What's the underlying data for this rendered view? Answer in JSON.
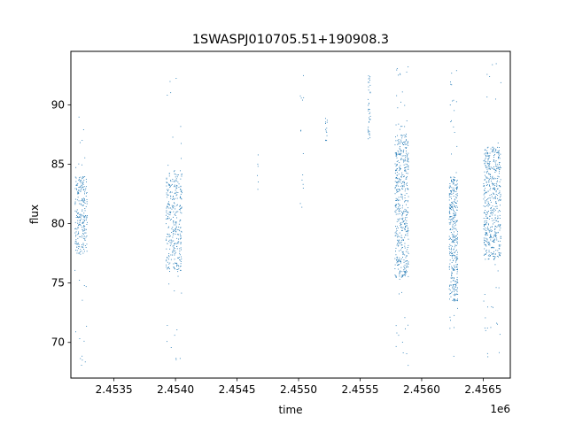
{
  "chart_data": {
    "type": "scatter",
    "title": "1SWASPJ010705.51+190908.3",
    "xlabel": "time",
    "ylabel": "flux",
    "x_offset_label": "1e6",
    "xlim": [
      2453150,
      2456720
    ],
    "ylim": [
      67,
      94.5
    ],
    "x_ticks": [
      2453500,
      2454000,
      2454500,
      2455000,
      2455500,
      2456000,
      2456500
    ],
    "x_tick_labels": [
      "2.4535",
      "2.4540",
      "2.4545",
      "2.4550",
      "2.4555",
      "2.4560",
      "2.4565"
    ],
    "y_ticks": [
      70,
      75,
      80,
      85,
      90
    ],
    "y_tick_labels": [
      "70",
      "75",
      "80",
      "85",
      "90"
    ],
    "grid": false,
    "marker_color": "#1f77b4",
    "series": [
      {
        "clusters": [
          {
            "x": [
              2453180,
              2453280
            ],
            "y_core": [
              77.5,
              84.0
            ],
            "y_range": [
              68,
              89.5
            ],
            "n": 260
          },
          {
            "x": [
              2453920,
              2454050
            ],
            "y_core": [
              76.0,
              84.5
            ],
            "y_range": [
              68.5,
              93.0
            ],
            "n": 340
          },
          {
            "x": [
              2454660,
              2454670
            ],
            "y_core": [
              82.7,
              86.0
            ],
            "y_range": [
              82.7,
              86.0
            ],
            "n": 6
          },
          {
            "x": [
              2455010,
              2455040
            ],
            "y_core": [
              81.0,
              93.5
            ],
            "y_range": [
              81.0,
              93.5
            ],
            "n": 14
          },
          {
            "x": [
              2455215,
              2455230
            ],
            "y_core": [
              87.0,
              89.0
            ],
            "y_range": [
              86.5,
              89.5
            ],
            "n": 14
          },
          {
            "x": [
              2455560,
              2455580
            ],
            "y_core": [
              87.0,
              92.5
            ],
            "y_range": [
              86.5,
              93.0
            ],
            "n": 40
          },
          {
            "x": [
              2455780,
              2455890
            ],
            "y_core": [
              75.5,
              87.5
            ],
            "y_range": [
              68.0,
              93.5
            ],
            "n": 520
          },
          {
            "x": [
              2456220,
              2456290
            ],
            "y_core": [
              73.5,
              84.0
            ],
            "y_range": [
              68.0,
              93.0
            ],
            "n": 380
          },
          {
            "x": [
              2456500,
              2456640
            ],
            "y_core": [
              77.0,
              86.5
            ],
            "y_range": [
              68.0,
              93.5
            ],
            "n": 520
          }
        ]
      }
    ]
  }
}
